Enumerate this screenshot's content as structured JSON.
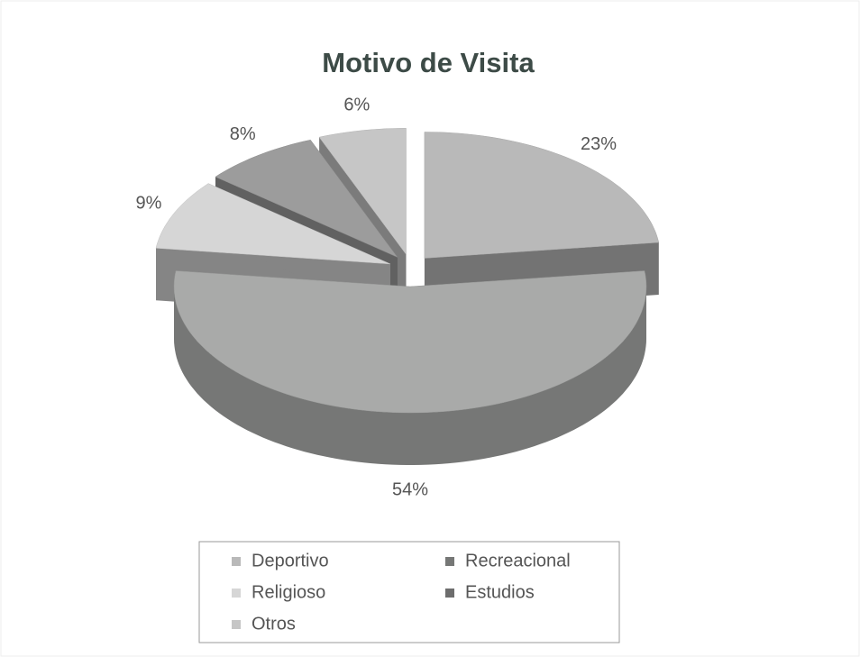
{
  "chart_data": {
    "type": "pie",
    "title": "Motivo de Visita",
    "categories": [
      "Deportivo",
      "Recreacional",
      "Religioso",
      "Estudios",
      "Otros"
    ],
    "values": [
      23,
      54,
      9,
      8,
      6
    ],
    "value_labels": [
      "23%",
      "54%",
      "9%",
      "8%",
      "6%"
    ],
    "colors": [
      "#b9b9b9",
      "#a9aaa9",
      "#d6d6d6",
      "#9c9c9c",
      "#c6c6c6"
    ],
    "legend": "bottom",
    "exploded": true,
    "three_d": true
  }
}
